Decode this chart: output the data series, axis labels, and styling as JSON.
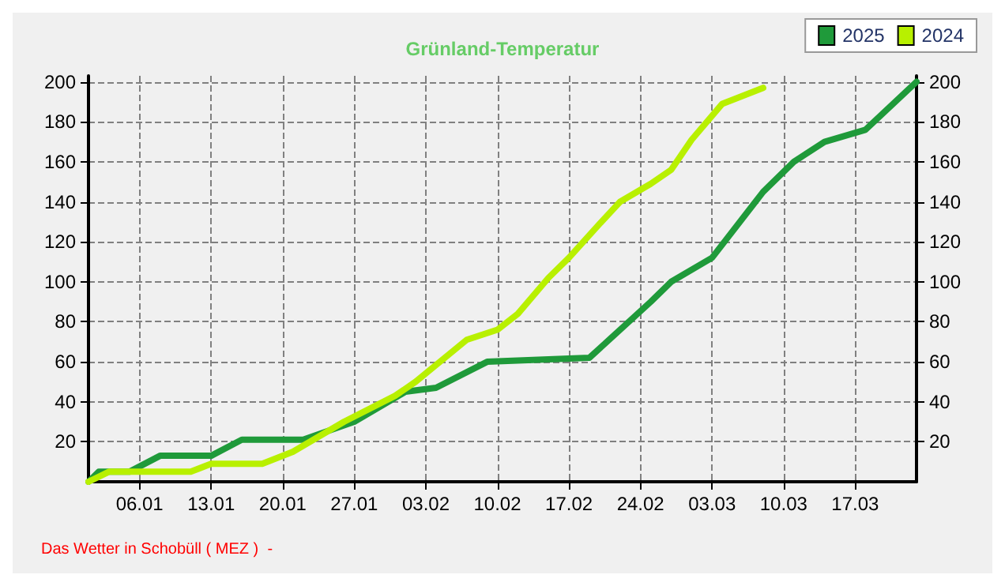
{
  "chart_data": {
    "type": "line",
    "title": "Grünland-Temperatur",
    "annotations": [
      "Das Wetter in Schobüll ( MEZ )  -"
    ],
    "xlim": [
      "--01-01",
      "--03-23"
    ],
    "xticks": [
      {
        "value": "--01-06",
        "label": "06.01"
      },
      {
        "value": "--01-13",
        "label": "13.01"
      },
      {
        "value": "--01-20",
        "label": "20.01"
      },
      {
        "value": "--01-27",
        "label": "27.01"
      },
      {
        "value": "--02-03",
        "label": "03.02"
      },
      {
        "value": "--02-10",
        "label": "10.02"
      },
      {
        "value": "--02-17",
        "label": "17.02"
      },
      {
        "value": "--02-24",
        "label": "24.02"
      },
      {
        "value": "--03-03",
        "label": "03.03"
      },
      {
        "value": "--03-10",
        "label": "10.03"
      },
      {
        "value": "--03-17",
        "label": "17.03"
      }
    ],
    "ylim": [
      0,
      203
    ],
    "yticks": [
      20,
      40,
      60,
      80,
      100,
      120,
      140,
      160,
      180,
      200
    ],
    "y2lim": [
      0,
      203
    ],
    "y2ticks": [
      20,
      40,
      60,
      80,
      100,
      120,
      140,
      160,
      180,
      200
    ],
    "grid": true,
    "legend": "top right",
    "marker": "none",
    "line_style": "solid",
    "series": [
      {
        "name": "2025",
        "color": "#1f9a3a",
        "x": [
          "--01-01",
          "--01-02",
          "--01-05",
          "--01-08",
          "--01-13",
          "--01-16",
          "--01-22",
          "--01-27",
          "--02-01",
          "--02-04",
          "--02-09",
          "--02-19",
          "--02-25",
          "--02-27",
          "--03-03",
          "--03-08",
          "--03-11",
          "--03-14",
          "--03-18",
          "--03-23"
        ],
        "values": [
          0,
          5,
          5,
          13,
          13,
          21,
          21,
          30,
          45,
          47,
          60,
          62,
          90,
          100,
          112,
          145,
          160,
          170,
          176,
          200
        ]
      },
      {
        "name": "2024",
        "color": "#b8f000",
        "x": [
          "--01-01",
          "--01-03",
          "--01-11",
          "--01-13",
          "--01-18",
          "--01-21",
          "--01-26",
          "--01-31",
          "--02-02",
          "--02-07",
          "--02-10",
          "--02-12",
          "--02-15",
          "--02-17",
          "--02-20",
          "--02-22",
          "--02-25",
          "--02-27",
          "--03-01",
          "--03-04",
          "--03-08"
        ],
        "values": [
          0,
          5,
          5,
          9,
          9,
          15,
          30,
          43,
          50,
          71,
          76,
          84,
          102,
          112,
          129,
          140,
          149,
          156,
          171,
          189,
          197
        ]
      }
    ]
  }
}
